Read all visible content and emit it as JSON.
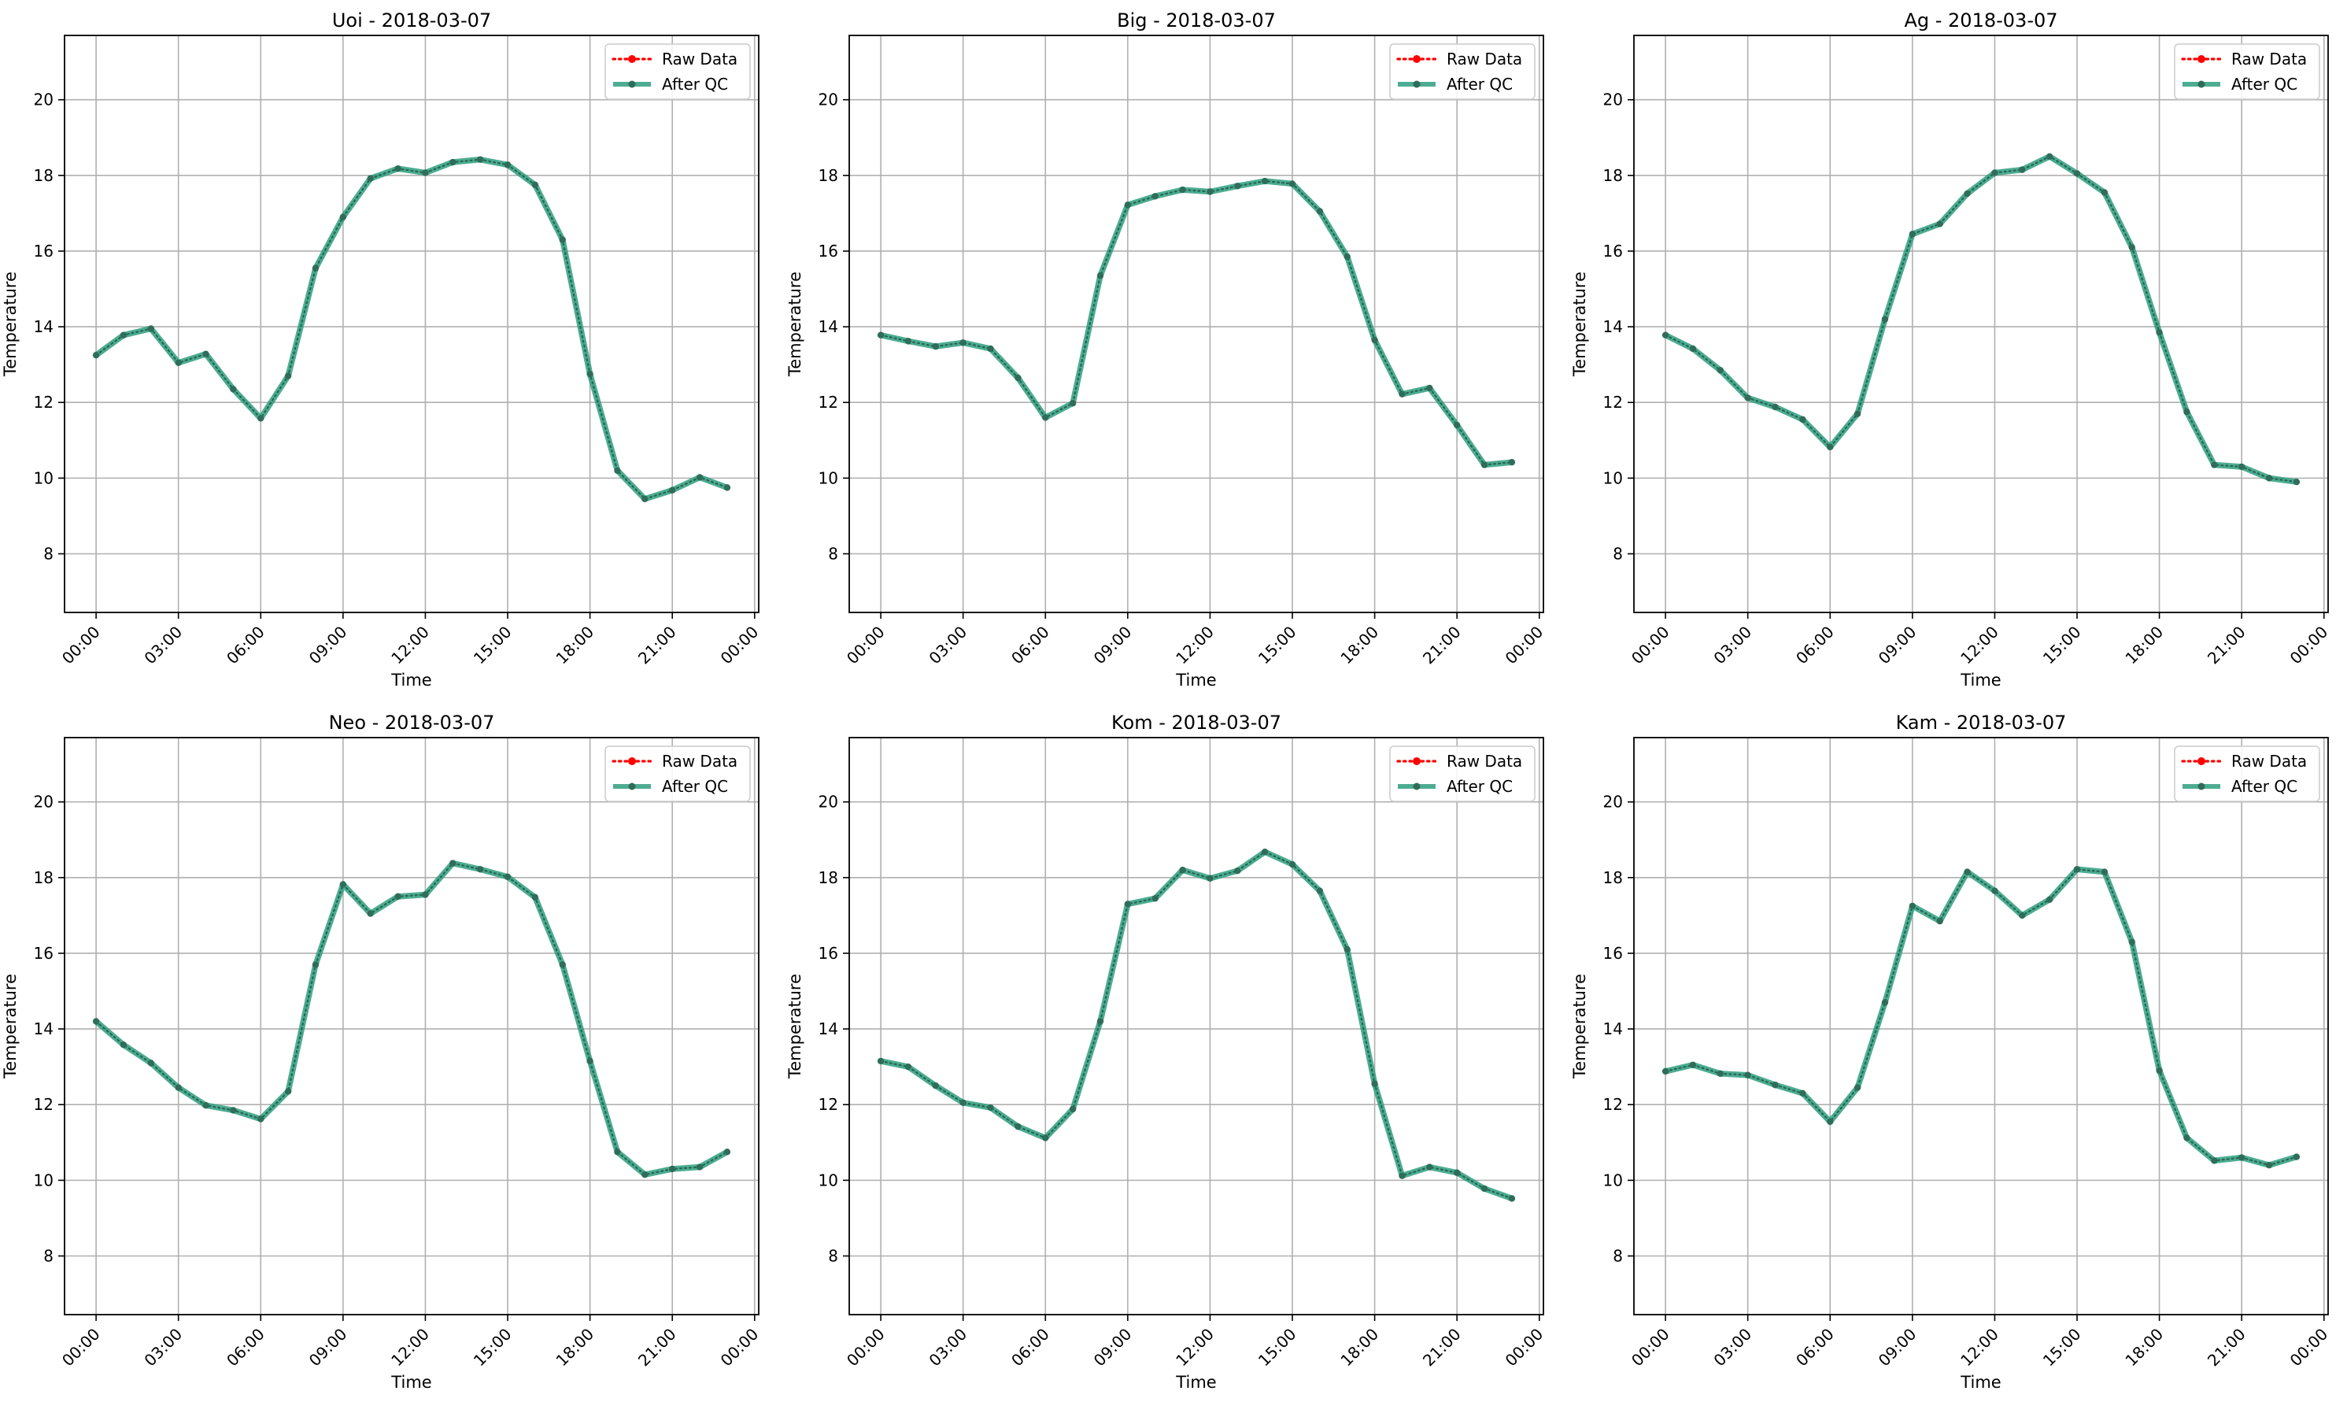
{
  "chart_data": [
    {
      "type": "line",
      "title": "Uoi - 2018-03-07",
      "xlabel": "Time",
      "ylabel": "Temperature",
      "xlim": [
        -1.15,
        24.15
      ],
      "ylim": [
        6.45,
        21.7
      ],
      "x_ticks": [
        0,
        3,
        6,
        9,
        12,
        15,
        18,
        21,
        24
      ],
      "x_tick_labels": [
        "00:00",
        "03:00",
        "06:00",
        "09:00",
        "12:00",
        "15:00",
        "18:00",
        "21:00",
        "00:00"
      ],
      "y_ticks": [
        8,
        10,
        12,
        14,
        16,
        18,
        20
      ],
      "y_tick_labels": [
        "8",
        "10",
        "12",
        "14",
        "16",
        "18",
        "20"
      ],
      "grid": true,
      "legend": "top-right",
      "x": [
        0,
        1,
        2,
        3,
        4,
        5,
        6,
        7,
        8,
        9,
        10,
        11,
        12,
        13,
        14,
        15,
        16,
        17,
        18,
        19,
        20,
        21,
        22,
        23
      ],
      "series": [
        {
          "name": "Raw Data",
          "color": "#ff0000",
          "style": "dotted",
          "values": [
            13.25,
            13.78,
            13.95,
            13.05,
            13.28,
            12.35,
            11.58,
            12.7,
            15.55,
            16.9,
            17.92,
            18.18,
            18.07,
            18.35,
            18.42,
            18.28,
            17.75,
            16.3,
            12.75,
            10.2,
            9.45,
            9.68,
            10.02,
            9.75
          ]
        },
        {
          "name": "After QC",
          "color": "#2e9e7e",
          "style": "solid",
          "values": [
            13.25,
            13.78,
            13.95,
            13.05,
            13.28,
            12.35,
            11.58,
            12.7,
            15.55,
            16.9,
            17.92,
            18.18,
            18.07,
            18.35,
            18.42,
            18.28,
            17.75,
            16.3,
            12.75,
            10.2,
            9.45,
            9.68,
            10.02,
            9.75
          ]
        }
      ]
    },
    {
      "type": "line",
      "title": "Big - 2018-03-07",
      "xlabel": "Time",
      "ylabel": "Temperature",
      "xlim": [
        -1.15,
        24.15
      ],
      "ylim": [
        6.45,
        21.7
      ],
      "x_ticks": [
        0,
        3,
        6,
        9,
        12,
        15,
        18,
        21,
        24
      ],
      "x_tick_labels": [
        "00:00",
        "03:00",
        "06:00",
        "09:00",
        "12:00",
        "15:00",
        "18:00",
        "21:00",
        "00:00"
      ],
      "y_ticks": [
        8,
        10,
        12,
        14,
        16,
        18,
        20
      ],
      "y_tick_labels": [
        "8",
        "10",
        "12",
        "14",
        "16",
        "18",
        "20"
      ],
      "grid": true,
      "legend": "top-right",
      "x": [
        0,
        1,
        2,
        3,
        4,
        5,
        6,
        7,
        8,
        9,
        10,
        11,
        12,
        13,
        14,
        15,
        16,
        17,
        18,
        19,
        20,
        21,
        22,
        23
      ],
      "series": [
        {
          "name": "Raw Data",
          "color": "#ff0000",
          "style": "dotted",
          "values": [
            13.78,
            13.62,
            13.48,
            13.58,
            13.42,
            12.65,
            11.6,
            11.98,
            15.35,
            17.22,
            17.45,
            17.62,
            17.57,
            17.72,
            17.85,
            17.78,
            17.05,
            15.85,
            13.65,
            12.22,
            12.38,
            11.4,
            10.35,
            10.42
          ]
        },
        {
          "name": "After QC",
          "color": "#2e9e7e",
          "style": "solid",
          "values": [
            13.78,
            13.62,
            13.48,
            13.58,
            13.42,
            12.65,
            11.6,
            11.98,
            15.35,
            17.22,
            17.45,
            17.62,
            17.57,
            17.72,
            17.85,
            17.78,
            17.05,
            15.85,
            13.65,
            12.22,
            12.38,
            11.4,
            10.35,
            10.42
          ]
        }
      ]
    },
    {
      "type": "line",
      "title": "Ag - 2018-03-07",
      "xlabel": "Time",
      "ylabel": "Temperature",
      "xlim": [
        -1.15,
        24.15
      ],
      "ylim": [
        6.45,
        21.7
      ],
      "x_ticks": [
        0,
        3,
        6,
        9,
        12,
        15,
        18,
        21,
        24
      ],
      "x_tick_labels": [
        "00:00",
        "03:00",
        "06:00",
        "09:00",
        "12:00",
        "15:00",
        "18:00",
        "21:00",
        "00:00"
      ],
      "y_ticks": [
        8,
        10,
        12,
        14,
        16,
        18,
        20
      ],
      "y_tick_labels": [
        "8",
        "10",
        "12",
        "14",
        "16",
        "18",
        "20"
      ],
      "grid": true,
      "legend": "top-right",
      "x": [
        0,
        1,
        2,
        3,
        4,
        5,
        6,
        7,
        8,
        9,
        10,
        11,
        12,
        13,
        14,
        15,
        16,
        17,
        18,
        19,
        20,
        21,
        22,
        23
      ],
      "series": [
        {
          "name": "Raw Data",
          "color": "#ff0000",
          "style": "dotted",
          "values": [
            13.78,
            13.42,
            12.85,
            12.12,
            11.88,
            11.55,
            10.82,
            11.7,
            14.2,
            16.45,
            16.72,
            17.52,
            18.07,
            18.15,
            18.5,
            18.05,
            17.55,
            16.1,
            13.85,
            11.75,
            10.35,
            10.3,
            10.0,
            9.9
          ]
        },
        {
          "name": "After QC",
          "color": "#2e9e7e",
          "style": "solid",
          "values": [
            13.78,
            13.42,
            12.85,
            12.12,
            11.88,
            11.55,
            10.82,
            11.7,
            14.2,
            16.45,
            16.72,
            17.52,
            18.07,
            18.15,
            18.5,
            18.05,
            17.55,
            16.1,
            13.85,
            11.75,
            10.35,
            10.3,
            10.0,
            9.9
          ]
        }
      ]
    },
    {
      "type": "line",
      "title": "Neo - 2018-03-07",
      "xlabel": "Time",
      "ylabel": "Temperature",
      "xlim": [
        -1.15,
        24.15
      ],
      "ylim": [
        6.45,
        21.7
      ],
      "x_ticks": [
        0,
        3,
        6,
        9,
        12,
        15,
        18,
        21,
        24
      ],
      "x_tick_labels": [
        "00:00",
        "03:00",
        "06:00",
        "09:00",
        "12:00",
        "15:00",
        "18:00",
        "21:00",
        "00:00"
      ],
      "y_ticks": [
        8,
        10,
        12,
        14,
        16,
        18,
        20
      ],
      "y_tick_labels": [
        "8",
        "10",
        "12",
        "14",
        "16",
        "18",
        "20"
      ],
      "grid": true,
      "legend": "top-right",
      "x": [
        0,
        1,
        2,
        3,
        4,
        5,
        6,
        7,
        8,
        9,
        10,
        11,
        12,
        13,
        14,
        15,
        16,
        17,
        18,
        19,
        20,
        21,
        22,
        23
      ],
      "series": [
        {
          "name": "Raw Data",
          "color": "#ff0000",
          "style": "dotted",
          "values": [
            14.2,
            13.58,
            13.1,
            12.45,
            11.98,
            11.85,
            11.62,
            12.35,
            15.7,
            17.82,
            17.05,
            17.5,
            17.55,
            18.38,
            18.22,
            18.02,
            17.48,
            15.7,
            13.15,
            10.75,
            10.15,
            10.3,
            10.35,
            10.75
          ]
        },
        {
          "name": "After QC",
          "color": "#2e9e7e",
          "style": "solid",
          "values": [
            14.2,
            13.58,
            13.1,
            12.45,
            11.98,
            11.85,
            11.62,
            12.35,
            15.7,
            17.82,
            17.05,
            17.5,
            17.55,
            18.38,
            18.22,
            18.02,
            17.48,
            15.7,
            13.15,
            10.75,
            10.15,
            10.3,
            10.35,
            10.75
          ]
        }
      ]
    },
    {
      "type": "line",
      "title": "Kom - 2018-03-07",
      "xlabel": "Time",
      "ylabel": "Temperature",
      "xlim": [
        -1.15,
        24.15
      ],
      "ylim": [
        6.45,
        21.7
      ],
      "x_ticks": [
        0,
        3,
        6,
        9,
        12,
        15,
        18,
        21,
        24
      ],
      "x_tick_labels": [
        "00:00",
        "03:00",
        "06:00",
        "09:00",
        "12:00",
        "15:00",
        "18:00",
        "21:00",
        "00:00"
      ],
      "y_ticks": [
        8,
        10,
        12,
        14,
        16,
        18,
        20
      ],
      "y_tick_labels": [
        "8",
        "10",
        "12",
        "14",
        "16",
        "18",
        "20"
      ],
      "grid": true,
      "legend": "top-right",
      "x": [
        0,
        1,
        2,
        3,
        4,
        5,
        6,
        7,
        8,
        9,
        10,
        11,
        12,
        13,
        14,
        15,
        16,
        17,
        18,
        19,
        20,
        21,
        22,
        23
      ],
      "series": [
        {
          "name": "Raw Data",
          "color": "#ff0000",
          "style": "dotted",
          "values": [
            13.15,
            13.0,
            12.5,
            12.05,
            11.92,
            11.42,
            11.12,
            11.88,
            14.2,
            17.3,
            17.45,
            18.2,
            17.98,
            18.18,
            18.68,
            18.35,
            17.65,
            16.1,
            12.55,
            10.12,
            10.35,
            10.2,
            9.78,
            9.52
          ]
        },
        {
          "name": "After QC",
          "color": "#2e9e7e",
          "style": "solid",
          "values": [
            13.15,
            13.0,
            12.5,
            12.05,
            11.92,
            11.42,
            11.12,
            11.88,
            14.2,
            17.3,
            17.45,
            18.2,
            17.98,
            18.18,
            18.68,
            18.35,
            17.65,
            16.1,
            12.55,
            10.12,
            10.35,
            10.2,
            9.78,
            9.52
          ]
        }
      ]
    },
    {
      "type": "line",
      "title": "Kam - 2018-03-07",
      "xlabel": "Time",
      "ylabel": "Temperature",
      "xlim": [
        -1.15,
        24.15
      ],
      "ylim": [
        6.45,
        21.7
      ],
      "x_ticks": [
        0,
        3,
        6,
        9,
        12,
        15,
        18,
        21,
        24
      ],
      "x_tick_labels": [
        "00:00",
        "03:00",
        "06:00",
        "09:00",
        "12:00",
        "15:00",
        "18:00",
        "21:00",
        "00:00"
      ],
      "y_ticks": [
        8,
        10,
        12,
        14,
        16,
        18,
        20
      ],
      "y_tick_labels": [
        "8",
        "10",
        "12",
        "14",
        "16",
        "18",
        "20"
      ],
      "grid": true,
      "legend": "top-right",
      "x": [
        0,
        1,
        2,
        3,
        4,
        5,
        6,
        7,
        8,
        9,
        10,
        11,
        12,
        13,
        14,
        15,
        16,
        17,
        18,
        19,
        20,
        21,
        22,
        23
      ],
      "series": [
        {
          "name": "Raw Data",
          "color": "#ff0000",
          "style": "dotted",
          "values": [
            12.88,
            13.05,
            12.82,
            12.78,
            12.52,
            12.3,
            11.55,
            12.45,
            14.7,
            17.25,
            16.85,
            18.15,
            17.65,
            17.0,
            17.42,
            18.22,
            18.15,
            16.3,
            12.9,
            11.12,
            10.52,
            10.6,
            10.4,
            10.62
          ]
        },
        {
          "name": "After QC",
          "color": "#2e9e7e",
          "style": "solid",
          "values": [
            12.88,
            13.05,
            12.82,
            12.78,
            12.52,
            12.3,
            11.55,
            12.45,
            14.7,
            17.25,
            16.85,
            18.15,
            17.65,
            17.0,
            17.42,
            18.22,
            18.15,
            16.3,
            12.9,
            11.12,
            10.52,
            10.6,
            10.4,
            10.62
          ]
        }
      ]
    }
  ]
}
